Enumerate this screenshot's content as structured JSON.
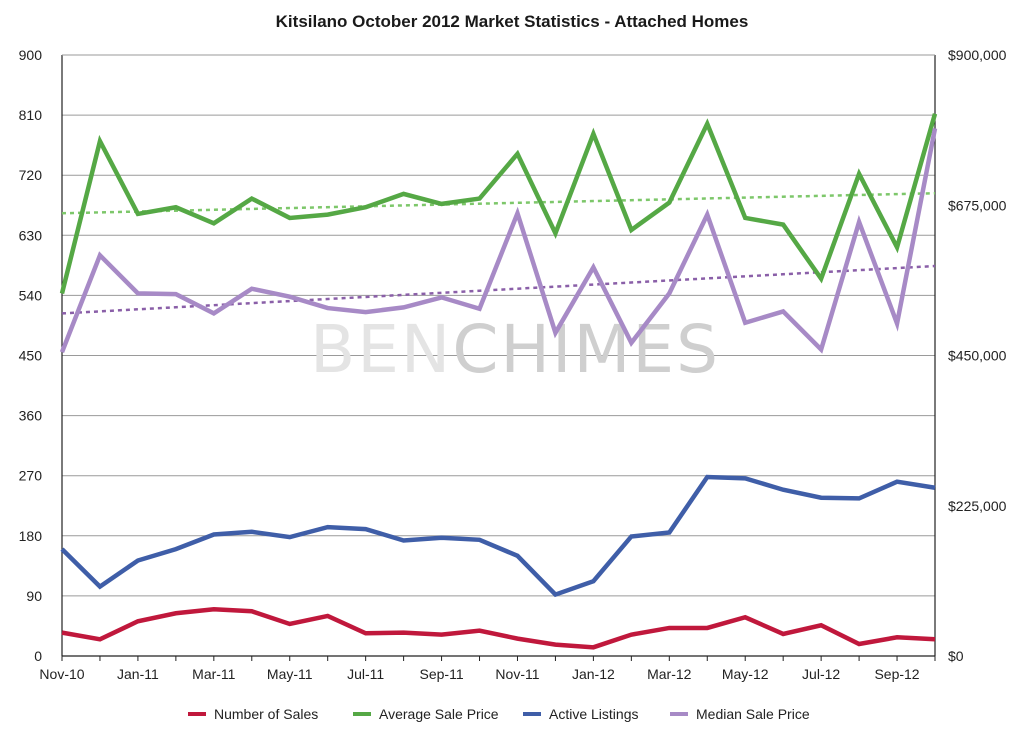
{
  "chart_data": {
    "type": "line",
    "title": "Kitsilano October 2012 Market Statistics - Attached Homes",
    "watermark": {
      "part1": "BEN",
      "part2": "CHIMES"
    },
    "x": [
      "Nov-10",
      "Dec-10",
      "Jan-11",
      "Feb-11",
      "Mar-11",
      "Apr-11",
      "May-11",
      "Jun-11",
      "Jul-11",
      "Aug-11",
      "Sep-11",
      "Oct-11",
      "Nov-11",
      "Dec-11",
      "Jan-12",
      "Feb-12",
      "Mar-12",
      "Apr-12",
      "May-12",
      "Jun-12",
      "Jul-12",
      "Aug-12",
      "Sep-12",
      "Oct-12"
    ],
    "x_tick_labels": [
      "Nov-10",
      "Jan-11",
      "Mar-11",
      "May-11",
      "Jul-11",
      "Sep-11",
      "Nov-11",
      "Jan-12",
      "Mar-12",
      "May-12",
      "Jul-12",
      "Sep-12"
    ],
    "y_left": {
      "min": 0,
      "max": 900,
      "ticks": [
        "0",
        "90",
        "180",
        "270",
        "360",
        "450",
        "540",
        "630",
        "720",
        "810",
        "900"
      ]
    },
    "y_right": {
      "min": 0,
      "max": 900000,
      "ticks": [
        "$0",
        "$225,000",
        "$450,000",
        "$675,000",
        "$900,000"
      ]
    },
    "grid": true,
    "legend_position": "bottom",
    "series": [
      {
        "name": "Number of Sales",
        "axis": "left",
        "color": "#c0183c",
        "values": [
          35,
          25,
          52,
          64,
          70,
          67,
          48,
          60,
          34,
          35,
          32,
          38,
          26,
          17,
          13,
          32,
          42,
          42,
          58,
          33,
          46,
          18,
          28,
          25
        ]
      },
      {
        "name": "Average Sale Price",
        "axis": "right",
        "color": "#55a845",
        "values": [
          543000,
          771000,
          662000,
          672000,
          648000,
          685000,
          656000,
          661000,
          672000,
          692000,
          677000,
          685000,
          752000,
          633000,
          782000,
          638000,
          679000,
          797000,
          656000,
          646000,
          565000,
          722000,
          612000,
          812000
        ],
        "trend": [
          663000,
          693000
        ]
      },
      {
        "name": "Active Listings",
        "axis": "left",
        "color": "#3f5ea8",
        "values": [
          160,
          104,
          143,
          160,
          182,
          186,
          178,
          193,
          190,
          173,
          177,
          174,
          150,
          92,
          112,
          179,
          185,
          268,
          266,
          249,
          237,
          236,
          261,
          252
        ]
      },
      {
        "name": "Median Sale Price",
        "axis": "right",
        "color": "#a78ac6",
        "values": [
          455000,
          600000,
          543000,
          542000,
          513000,
          550000,
          538000,
          521000,
          515000,
          522000,
          537000,
          520000,
          663000,
          484000,
          582000,
          469000,
          543000,
          661000,
          499000,
          516000,
          459000,
          650000,
          498000,
          790000
        ],
        "trend": [
          513000,
          584000
        ]
      }
    ]
  }
}
